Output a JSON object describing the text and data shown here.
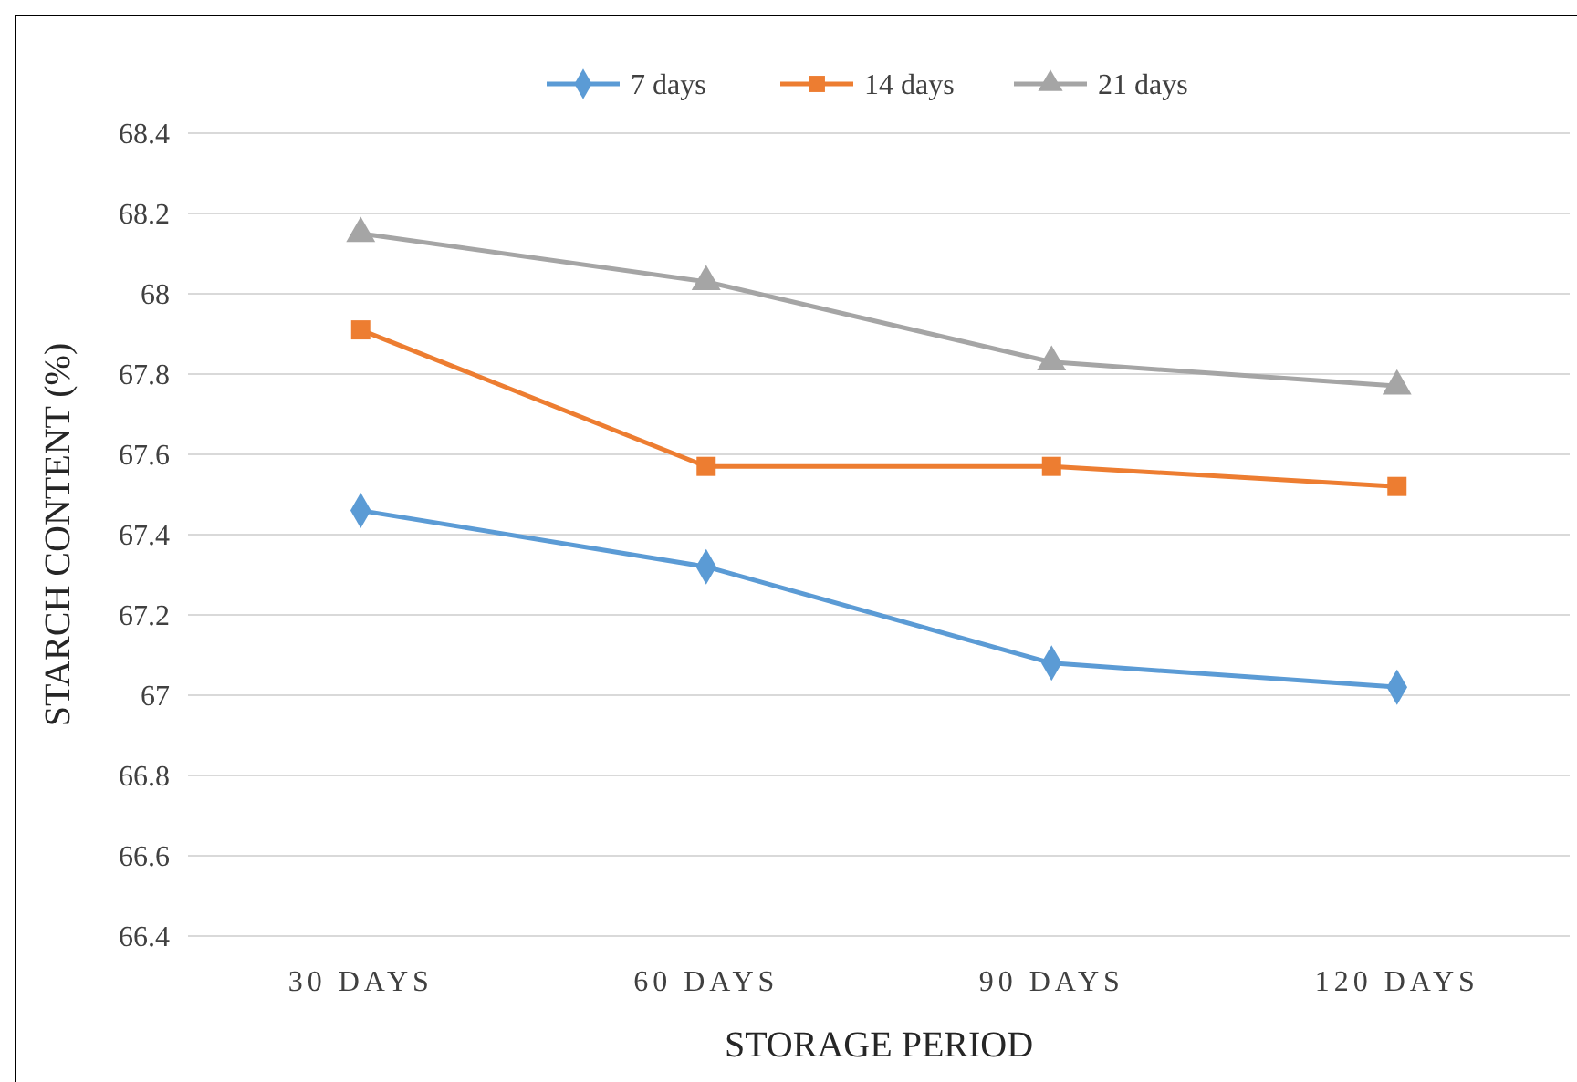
{
  "chart_data": {
    "type": "line",
    "xlabel": "STORAGE PERIOD",
    "ylabel": "STARCH CONTENT (%)",
    "categories": [
      "30 DAYS",
      "60 DAYS",
      "90 DAYS",
      "120 DAYS"
    ],
    "series": [
      {
        "name": "7 days",
        "color": "#5b9bd5",
        "marker": "diamond",
        "values": [
          67.46,
          67.32,
          67.08,
          67.02
        ]
      },
      {
        "name": "14 days",
        "color": "#ed7d31",
        "marker": "square",
        "values": [
          67.91,
          67.57,
          67.57,
          67.52
        ]
      },
      {
        "name": "21 days",
        "color": "#a5a5a5",
        "marker": "triangle",
        "values": [
          68.15,
          68.03,
          67.83,
          67.77
        ]
      }
    ],
    "ylim": [
      66.4,
      68.4
    ],
    "yticks": [
      66.4,
      66.6,
      66.8,
      67,
      67.2,
      67.4,
      67.6,
      67.8,
      68,
      68.2,
      68.4
    ],
    "grid": "y",
    "legend": "top",
    "line_style": "solid"
  }
}
